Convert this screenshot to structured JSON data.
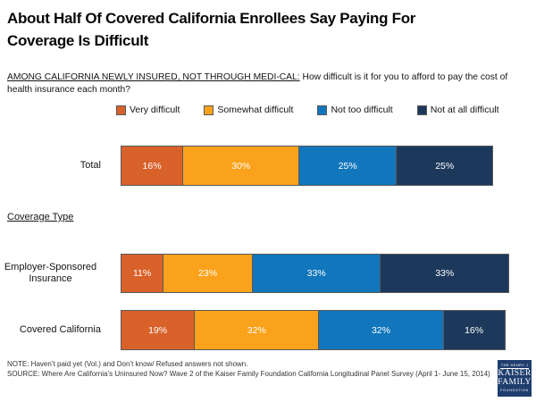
{
  "header": {
    "title_lines": [
      "About Half Of Covered California Enrollees Say Paying For",
      "Coverage Is Difficult"
    ],
    "question_prefix": "AMONG CALIFORNIA NEWLY INSURED, NOT THROUGH MEDI-CAL:",
    "question_text": "How difficult is it for you to afford to pay the cost of health insurance each month?"
  },
  "chart_data": {
    "type": "bar",
    "stacked": true,
    "orientation": "horizontal",
    "xlim": [
      0,
      100
    ],
    "value_suffix": "%",
    "legend_position": "top",
    "grid": false,
    "categories": [
      "Total",
      "Employer-Sponsored Insurance",
      "Covered California"
    ],
    "group_label": "Coverage Type",
    "series": [
      {
        "name": "Very difficult",
        "color": "#D9622B",
        "values": [
          16,
          11,
          19
        ]
      },
      {
        "name": "Somewhat difficult",
        "color": "#FAA21B",
        "values": [
          30,
          23,
          32
        ]
      },
      {
        "name": "Not too difficult",
        "color": "#1176BC",
        "values": [
          25,
          33,
          32
        ]
      },
      {
        "name": "Not at all difficult",
        "color": "#1C395C",
        "values": [
          25,
          33,
          16
        ]
      }
    ]
  },
  "footer": {
    "note": "NOTE: Haven’t paid yet (Vol.) and Don’t know/ Refused answers not shown.",
    "source": "SOURCE: Where Are California’s Uninsured Now? Wave 2 of the Kaiser Family Foundation California Longitudinal Panel Survey (April 1- June 15, 2014)",
    "logo": {
      "line1": "THE HENRY J",
      "line2": "KAISER",
      "line3": "FAMILY",
      "line4": "FOUNDATION"
    }
  }
}
